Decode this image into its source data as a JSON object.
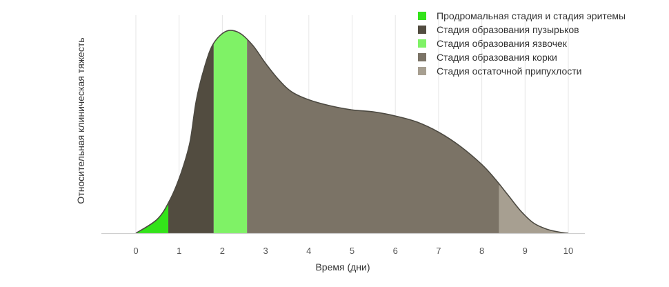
{
  "chart_data": {
    "type": "area",
    "title": "",
    "xlabel": "Время (дни)",
    "ylabel": "Относительная клиническая тяжесть",
    "xlim": [
      -0.8,
      10.4
    ],
    "ylim": [
      0,
      1.0
    ],
    "x_ticks": [
      0,
      1,
      2,
      3,
      4,
      5,
      6,
      7,
      8,
      9,
      10
    ],
    "y_ticks": [],
    "grid": "vertical",
    "legend_position": "top-right",
    "curve": {
      "x": [
        0,
        0.5,
        0.8,
        1.05,
        1.25,
        1.4,
        1.6,
        1.8,
        2.1,
        2.4,
        2.7,
        3.0,
        3.3,
        3.6,
        4.0,
        4.5,
        5.0,
        5.5,
        6.0,
        6.5,
        7.0,
        7.5,
        8.0,
        8.3,
        8.6,
        8.9,
        9.2,
        9.5,
        9.8,
        10.0
      ],
      "y": [
        0,
        0.07,
        0.17,
        0.3,
        0.45,
        0.66,
        0.83,
        0.94,
        1.0,
        0.99,
        0.93,
        0.84,
        0.76,
        0.7,
        0.66,
        0.63,
        0.61,
        0.6,
        0.58,
        0.55,
        0.5,
        0.43,
        0.34,
        0.27,
        0.19,
        0.11,
        0.05,
        0.02,
        0.005,
        0
      ]
    },
    "series": [
      {
        "name": "Продромальная стадия и стадия эритемы",
        "x_start": 0,
        "x_end": 0.75,
        "color": "#33e31a"
      },
      {
        "name": "Стадия образования пузырьков",
        "x_start": 0.75,
        "x_end": 1.8,
        "color": "#524c40"
      },
      {
        "name": "Стадия образования язвочек",
        "x_start": 1.8,
        "x_end": 2.57,
        "color": "#7ff266"
      },
      {
        "name": "Стадия образования корки",
        "x_start": 2.57,
        "x_end": 8.4,
        "color": "#7b7366"
      },
      {
        "name": "Стадия остаточной припухлости",
        "x_start": 8.4,
        "x_end": 10.0,
        "color": "#a79f91"
      }
    ],
    "outline_color": "#4d4a42",
    "grid_color": "#e6e6e6",
    "axis_color": "#cfcfcf"
  }
}
